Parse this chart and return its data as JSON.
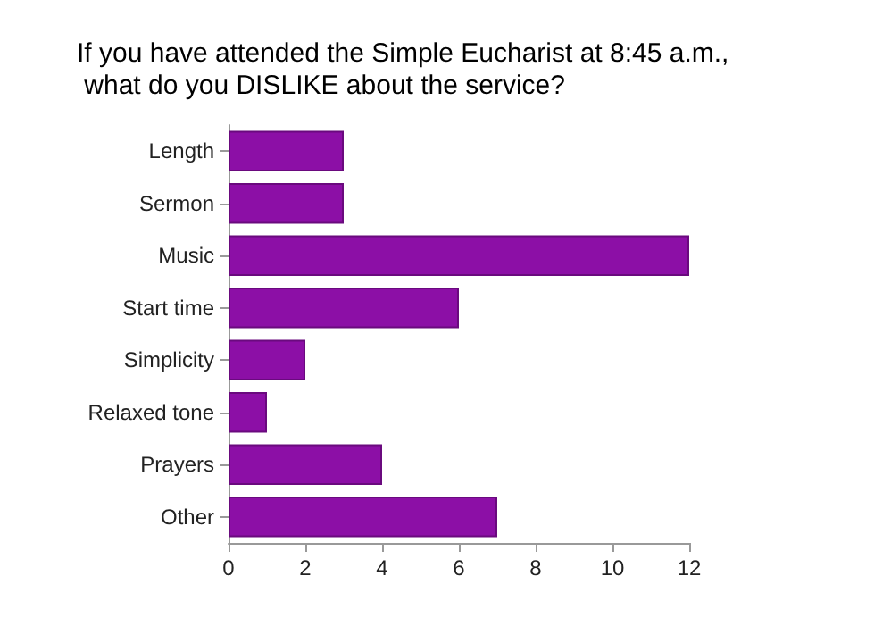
{
  "chart_data": {
    "type": "bar",
    "orientation": "horizontal",
    "title": "If you have attended the Simple Eucharist at 8:45 a.m.,\n what do you DISLIKE about the service?",
    "categories": [
      "Length",
      "Sermon",
      "Music",
      "Start time",
      "Simplicity",
      "Relaxed tone",
      "Prayers",
      "Other"
    ],
    "values": [
      3,
      3,
      12,
      6,
      2,
      1,
      4,
      7
    ],
    "color": "#8c0fa6",
    "xlim": [
      0,
      12
    ],
    "xticks": [
      0,
      2,
      4,
      6,
      8,
      10,
      12
    ],
    "grid": false
  }
}
